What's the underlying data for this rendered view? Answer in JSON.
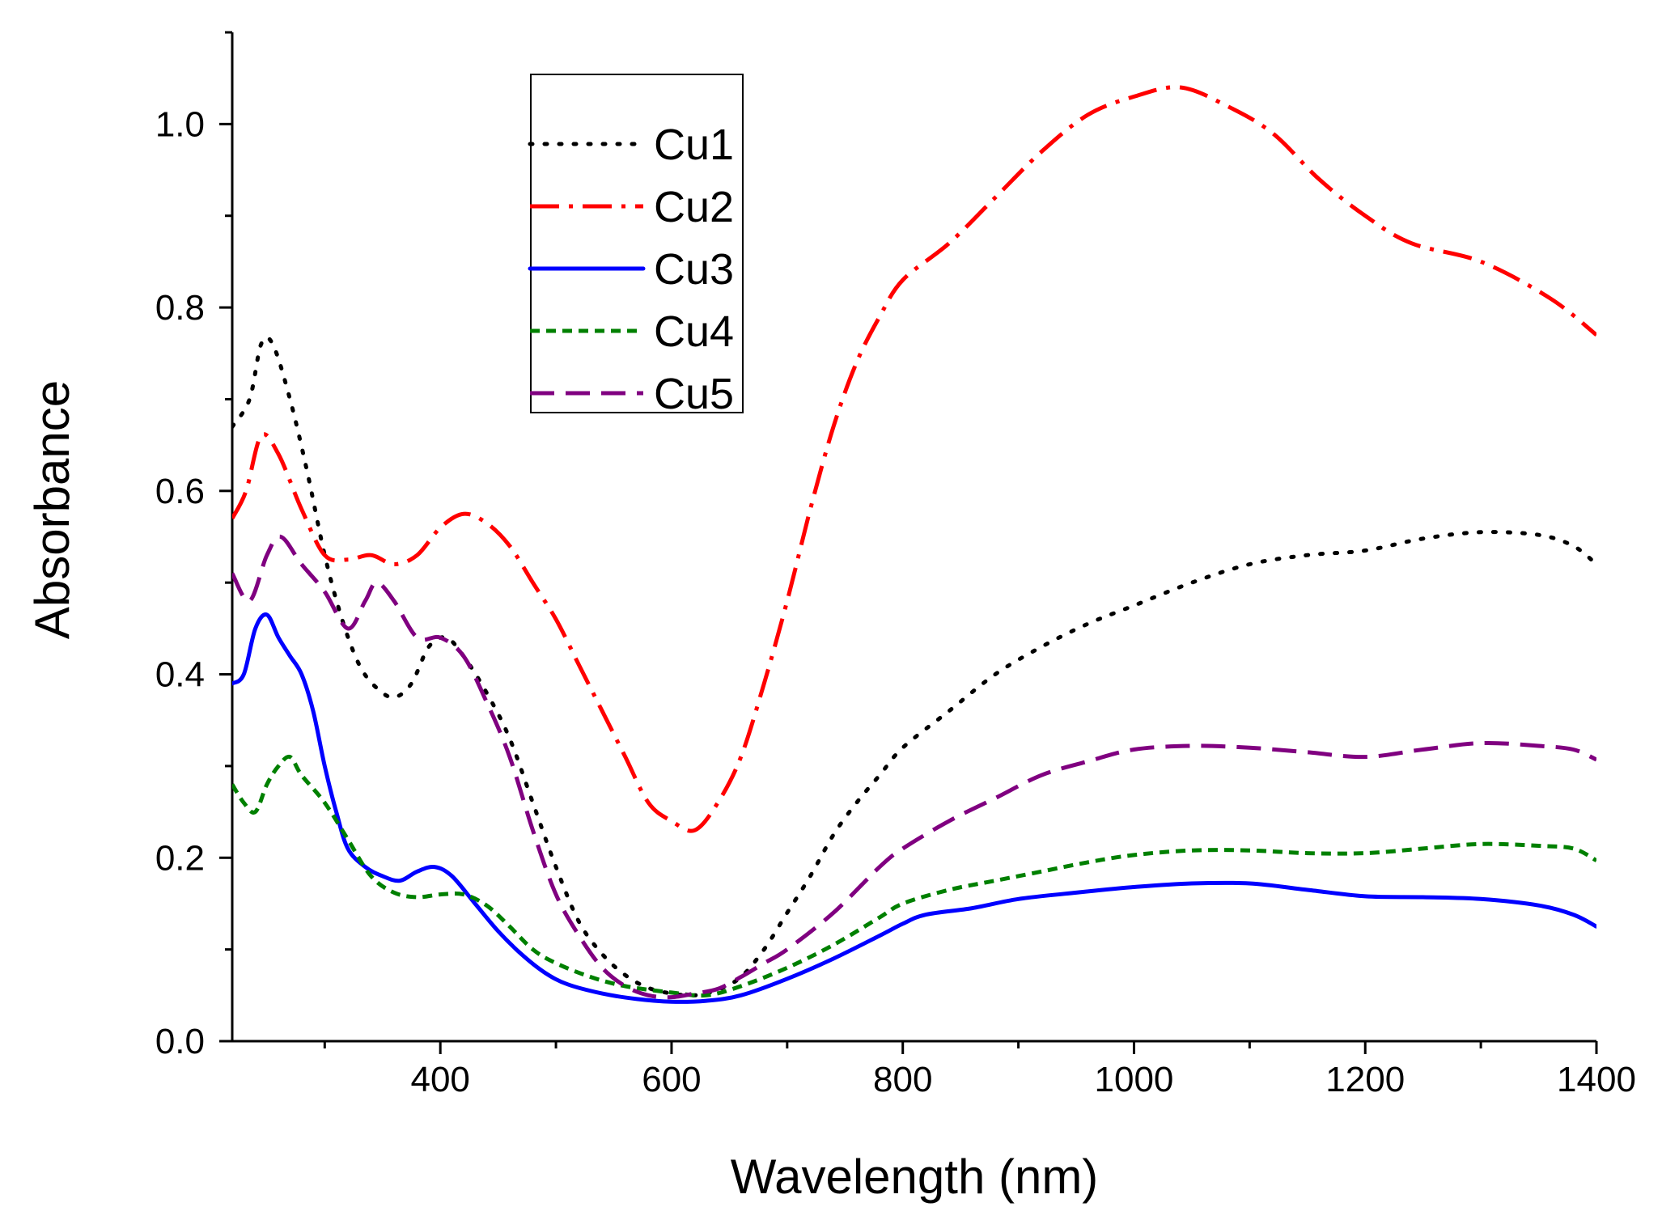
{
  "chart_data": {
    "type": "line",
    "title": "",
    "xlabel": "Wavelength (nm)",
    "ylabel": "Absorbance",
    "xlim": [
      220,
      1400
    ],
    "ylim": [
      0,
      1.1
    ],
    "x_ticks": [
      400,
      600,
      800,
      1000,
      1200,
      1400
    ],
    "x_tick_labels": [
      "400",
      "600",
      "800",
      "1000",
      "1200",
      "1400"
    ],
    "x_minor_ticks": [
      300,
      500,
      700,
      900,
      1100,
      1300
    ],
    "y_ticks": [
      0,
      0.2,
      0.4,
      0.6,
      0.8,
      1.0
    ],
    "y_tick_labels": [
      "0.0",
      "0.2",
      "0.4",
      "0.6",
      "0.8",
      "1.0"
    ],
    "y_minor_ticks": [
      0.1,
      0.3,
      0.5,
      0.7,
      0.9,
      1.1
    ],
    "grid": false,
    "legend": "top-center",
    "series": [
      {
        "name": "Cu1",
        "color": "#000000",
        "style": "dotted",
        "points": [
          [
            220,
            0.67
          ],
          [
            235,
            0.7
          ],
          [
            245,
            0.76
          ],
          [
            255,
            0.76
          ],
          [
            270,
            0.7
          ],
          [
            285,
            0.62
          ],
          [
            300,
            0.53
          ],
          [
            315,
            0.46
          ],
          [
            330,
            0.41
          ],
          [
            345,
            0.385
          ],
          [
            360,
            0.375
          ],
          [
            375,
            0.39
          ],
          [
            390,
            0.43
          ],
          [
            405,
            0.44
          ],
          [
            420,
            0.42
          ],
          [
            440,
            0.38
          ],
          [
            460,
            0.33
          ],
          [
            480,
            0.26
          ],
          [
            500,
            0.19
          ],
          [
            520,
            0.13
          ],
          [
            540,
            0.095
          ],
          [
            560,
            0.072
          ],
          [
            580,
            0.058
          ],
          [
            600,
            0.052
          ],
          [
            620,
            0.05
          ],
          [
            640,
            0.056
          ],
          [
            660,
            0.07
          ],
          [
            680,
            0.1
          ],
          [
            700,
            0.14
          ],
          [
            720,
            0.18
          ],
          [
            740,
            0.225
          ],
          [
            760,
            0.26
          ],
          [
            780,
            0.29
          ],
          [
            800,
            0.32
          ],
          [
            840,
            0.36
          ],
          [
            880,
            0.4
          ],
          [
            920,
            0.43
          ],
          [
            960,
            0.455
          ],
          [
            1000,
            0.475
          ],
          [
            1050,
            0.5
          ],
          [
            1100,
            0.52
          ],
          [
            1150,
            0.53
          ],
          [
            1200,
            0.535
          ],
          [
            1250,
            0.548
          ],
          [
            1300,
            0.555
          ],
          [
            1350,
            0.552
          ],
          [
            1380,
            0.54
          ],
          [
            1400,
            0.52
          ]
        ]
      },
      {
        "name": "Cu2",
        "color": "#ff0000",
        "style": "dash-dot",
        "points": [
          [
            220,
            0.57
          ],
          [
            232,
            0.6
          ],
          [
            245,
            0.66
          ],
          [
            260,
            0.64
          ],
          [
            280,
            0.58
          ],
          [
            300,
            0.53
          ],
          [
            320,
            0.525
          ],
          [
            340,
            0.53
          ],
          [
            360,
            0.52
          ],
          [
            380,
            0.53
          ],
          [
            400,
            0.56
          ],
          [
            420,
            0.575
          ],
          [
            440,
            0.565
          ],
          [
            460,
            0.54
          ],
          [
            480,
            0.5
          ],
          [
            500,
            0.46
          ],
          [
            520,
            0.41
          ],
          [
            540,
            0.36
          ],
          [
            560,
            0.31
          ],
          [
            580,
            0.26
          ],
          [
            600,
            0.24
          ],
          [
            620,
            0.23
          ],
          [
            640,
            0.26
          ],
          [
            660,
            0.31
          ],
          [
            680,
            0.39
          ],
          [
            700,
            0.48
          ],
          [
            720,
            0.58
          ],
          [
            740,
            0.67
          ],
          [
            760,
            0.74
          ],
          [
            780,
            0.79
          ],
          [
            800,
            0.83
          ],
          [
            840,
            0.87
          ],
          [
            880,
            0.92
          ],
          [
            920,
            0.97
          ],
          [
            960,
            1.01
          ],
          [
            1000,
            1.03
          ],
          [
            1040,
            1.04
          ],
          [
            1080,
            1.02
          ],
          [
            1120,
            0.99
          ],
          [
            1160,
            0.94
          ],
          [
            1200,
            0.9
          ],
          [
            1240,
            0.87
          ],
          [
            1300,
            0.85
          ],
          [
            1360,
            0.81
          ],
          [
            1400,
            0.77
          ]
        ]
      },
      {
        "name": "Cu3",
        "color": "#0000ff",
        "style": "solid",
        "points": [
          [
            220,
            0.39
          ],
          [
            230,
            0.4
          ],
          [
            240,
            0.45
          ],
          [
            250,
            0.465
          ],
          [
            260,
            0.44
          ],
          [
            270,
            0.42
          ],
          [
            280,
            0.4
          ],
          [
            290,
            0.36
          ],
          [
            300,
            0.3
          ],
          [
            310,
            0.25
          ],
          [
            320,
            0.21
          ],
          [
            335,
            0.19
          ],
          [
            350,
            0.18
          ],
          [
            365,
            0.175
          ],
          [
            380,
            0.185
          ],
          [
            395,
            0.19
          ],
          [
            410,
            0.18
          ],
          [
            430,
            0.15
          ],
          [
            450,
            0.12
          ],
          [
            470,
            0.095
          ],
          [
            490,
            0.075
          ],
          [
            510,
            0.062
          ],
          [
            540,
            0.052
          ],
          [
            570,
            0.046
          ],
          [
            600,
            0.043
          ],
          [
            630,
            0.044
          ],
          [
            660,
            0.05
          ],
          [
            700,
            0.068
          ],
          [
            740,
            0.09
          ],
          [
            780,
            0.115
          ],
          [
            800,
            0.128
          ],
          [
            820,
            0.138
          ],
          [
            860,
            0.145
          ],
          [
            900,
            0.155
          ],
          [
            950,
            0.162
          ],
          [
            1000,
            0.168
          ],
          [
            1050,
            0.172
          ],
          [
            1100,
            0.172
          ],
          [
            1150,
            0.165
          ],
          [
            1200,
            0.158
          ],
          [
            1250,
            0.157
          ],
          [
            1300,
            0.155
          ],
          [
            1350,
            0.148
          ],
          [
            1380,
            0.138
          ],
          [
            1400,
            0.125
          ]
        ]
      },
      {
        "name": "Cu4",
        "color": "#008000",
        "style": "short-dash",
        "points": [
          [
            220,
            0.28
          ],
          [
            230,
            0.26
          ],
          [
            240,
            0.25
          ],
          [
            250,
            0.28
          ],
          [
            260,
            0.3
          ],
          [
            270,
            0.31
          ],
          [
            280,
            0.29
          ],
          [
            300,
            0.26
          ],
          [
            320,
            0.22
          ],
          [
            340,
            0.18
          ],
          [
            360,
            0.162
          ],
          [
            380,
            0.157
          ],
          [
            400,
            0.16
          ],
          [
            420,
            0.16
          ],
          [
            440,
            0.148
          ],
          [
            460,
            0.125
          ],
          [
            480,
            0.1
          ],
          [
            500,
            0.085
          ],
          [
            530,
            0.07
          ],
          [
            560,
            0.06
          ],
          [
            600,
            0.053
          ],
          [
            630,
            0.05
          ],
          [
            660,
            0.06
          ],
          [
            700,
            0.08
          ],
          [
            740,
            0.105
          ],
          [
            780,
            0.135
          ],
          [
            800,
            0.15
          ],
          [
            840,
            0.165
          ],
          [
            880,
            0.175
          ],
          [
            920,
            0.185
          ],
          [
            960,
            0.195
          ],
          [
            1000,
            0.203
          ],
          [
            1050,
            0.208
          ],
          [
            1100,
            0.208
          ],
          [
            1150,
            0.205
          ],
          [
            1200,
            0.205
          ],
          [
            1250,
            0.21
          ],
          [
            1300,
            0.215
          ],
          [
            1350,
            0.213
          ],
          [
            1380,
            0.21
          ],
          [
            1400,
            0.197
          ]
        ]
      },
      {
        "name": "Cu5",
        "color": "#800080",
        "style": "long-dash",
        "points": [
          [
            220,
            0.51
          ],
          [
            235,
            0.48
          ],
          [
            250,
            0.53
          ],
          [
            262,
            0.55
          ],
          [
            280,
            0.52
          ],
          [
            300,
            0.49
          ],
          [
            320,
            0.45
          ],
          [
            335,
            0.48
          ],
          [
            345,
            0.5
          ],
          [
            360,
            0.48
          ],
          [
            380,
            0.44
          ],
          [
            400,
            0.44
          ],
          [
            420,
            0.42
          ],
          [
            440,
            0.37
          ],
          [
            460,
            0.31
          ],
          [
            480,
            0.23
          ],
          [
            500,
            0.16
          ],
          [
            520,
            0.115
          ],
          [
            540,
            0.08
          ],
          [
            560,
            0.06
          ],
          [
            580,
            0.05
          ],
          [
            600,
            0.048
          ],
          [
            620,
            0.052
          ],
          [
            640,
            0.057
          ],
          [
            660,
            0.07
          ],
          [
            680,
            0.085
          ],
          [
            700,
            0.1
          ],
          [
            740,
            0.14
          ],
          [
            780,
            0.19
          ],
          [
            800,
            0.21
          ],
          [
            840,
            0.24
          ],
          [
            880,
            0.265
          ],
          [
            920,
            0.29
          ],
          [
            960,
            0.305
          ],
          [
            1000,
            0.318
          ],
          [
            1050,
            0.322
          ],
          [
            1100,
            0.32
          ],
          [
            1150,
            0.315
          ],
          [
            1200,
            0.31
          ],
          [
            1250,
            0.318
          ],
          [
            1300,
            0.325
          ],
          [
            1350,
            0.322
          ],
          [
            1380,
            0.318
          ],
          [
            1400,
            0.307
          ]
        ]
      }
    ]
  }
}
